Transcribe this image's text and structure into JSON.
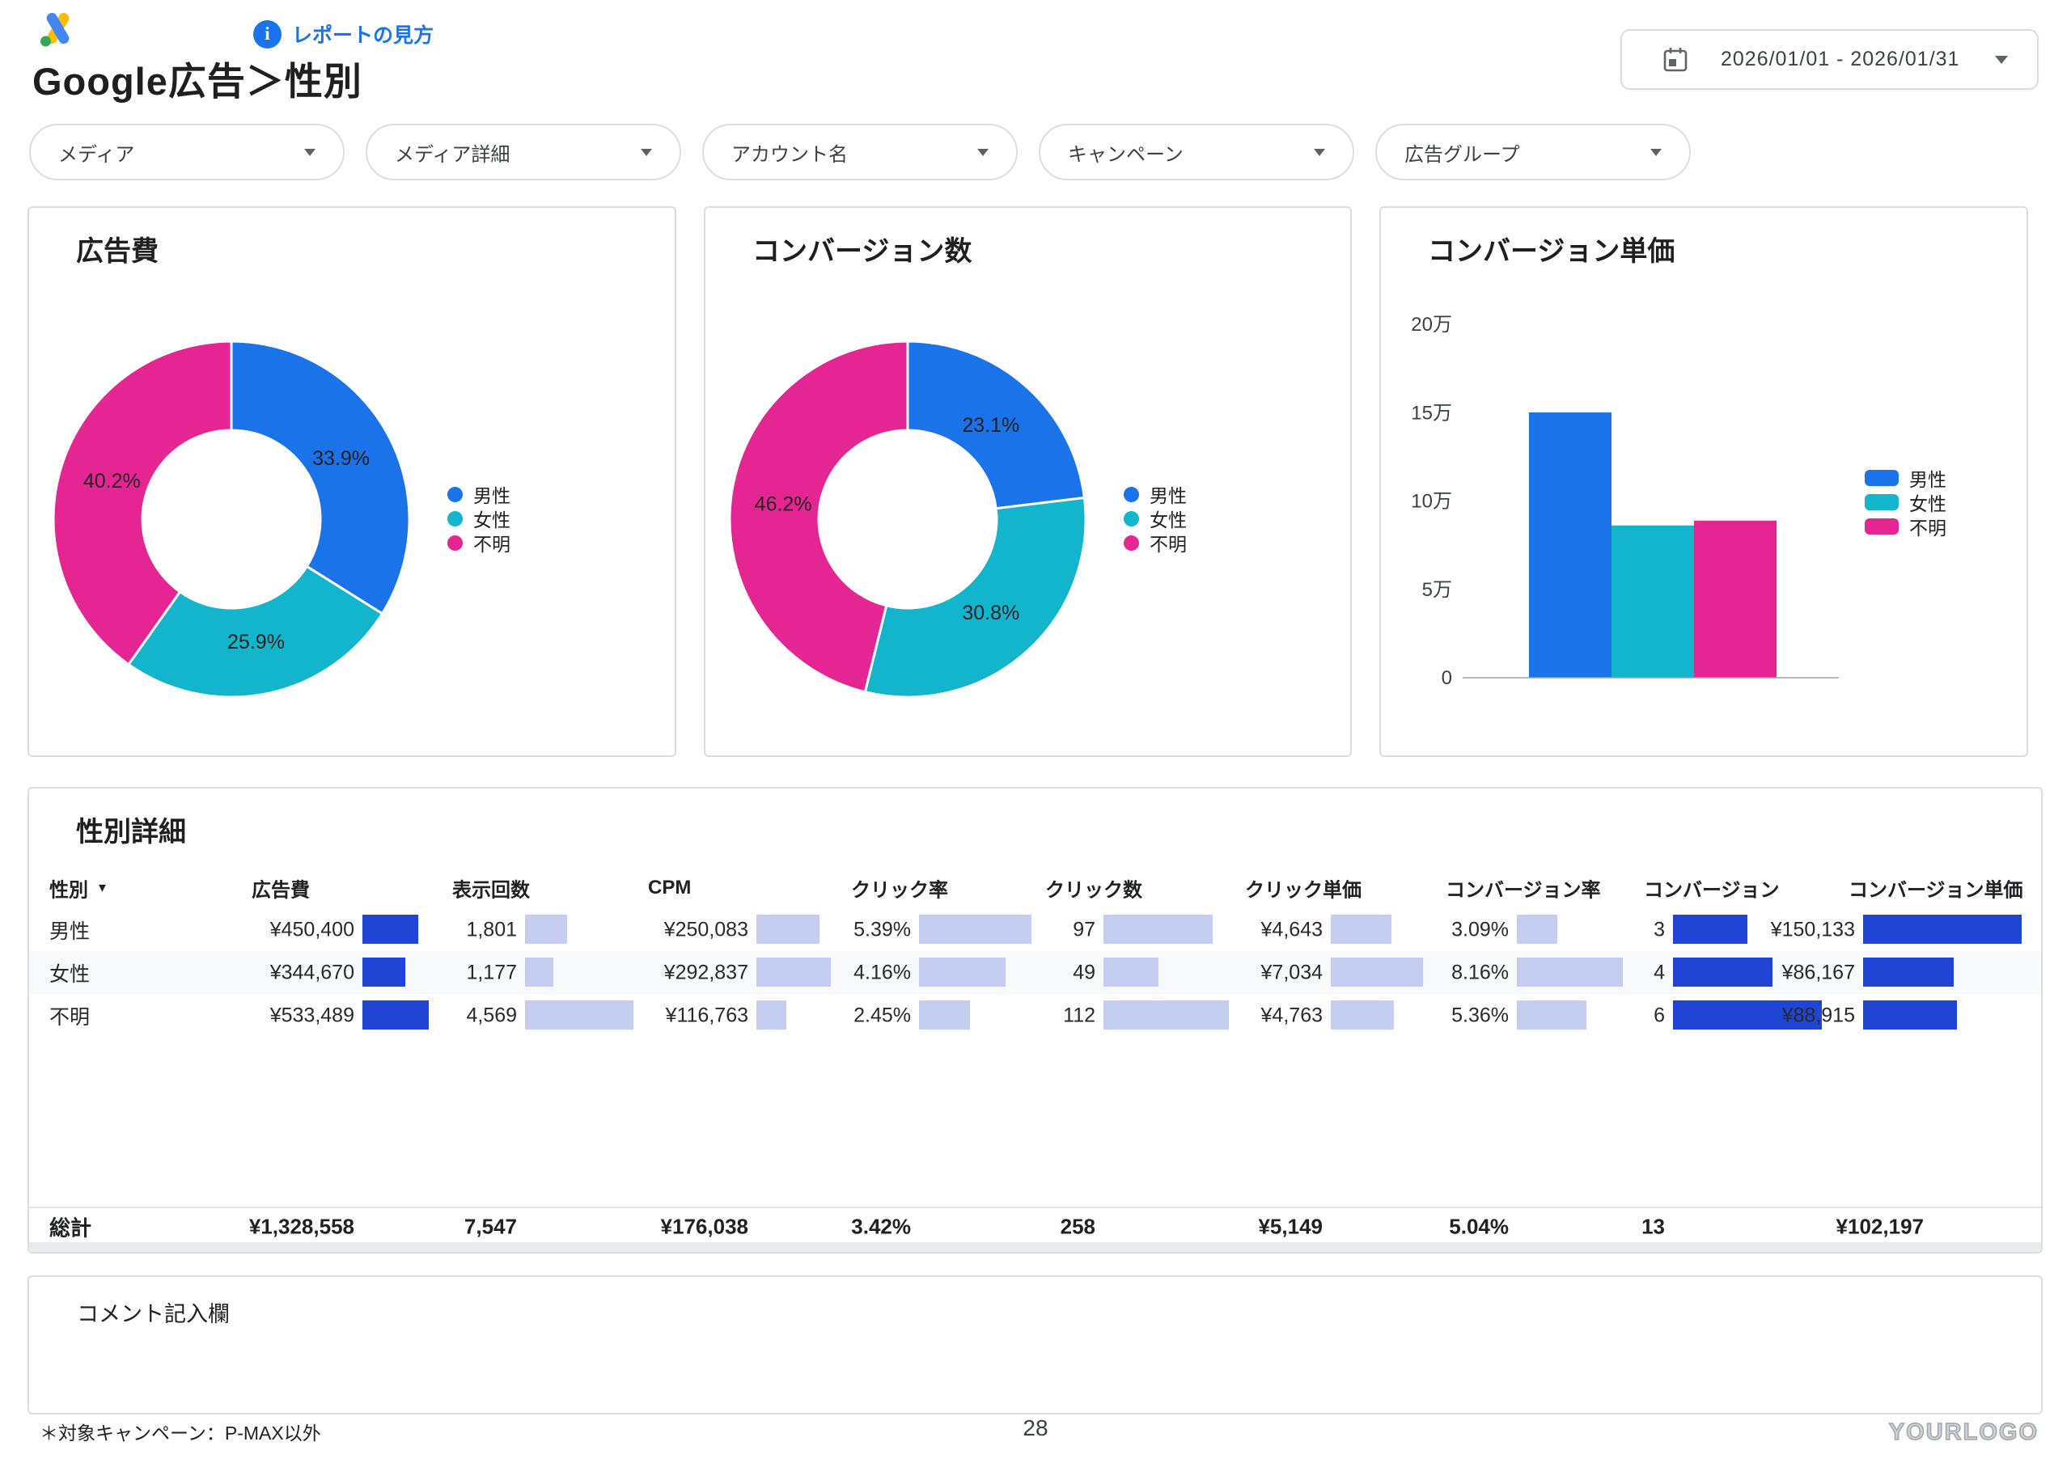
{
  "header": {
    "title": "Google広告＞性別",
    "help_link": "レポートの見方",
    "date_range": "2026/01/01 - 2026/01/31"
  },
  "filters": [
    {
      "label": "メディア"
    },
    {
      "label": "メディア詳細"
    },
    {
      "label": "アカウント名"
    },
    {
      "label": "キャンペーン"
    },
    {
      "label": "広告グループ"
    }
  ],
  "colors": {
    "male": "#1a73e8",
    "female": "#12b5cb",
    "unknown": "#e52592",
    "table_bar_dark": "#2044d4",
    "table_bar_light": "#c4cdf0",
    "link_blue": "#1a73e8"
  },
  "chart_data": [
    {
      "type": "donut",
      "title": "広告費",
      "categories": [
        "男性",
        "女性",
        "不明"
      ],
      "values": [
        33.9,
        25.9,
        40.2
      ],
      "labels": [
        "33.9%",
        "25.9%",
        "40.2%"
      ],
      "legend_position": "right",
      "legend_shape": "circle"
    },
    {
      "type": "donut",
      "title": "コンバージョン数",
      "categories": [
        "男性",
        "女性",
        "不明"
      ],
      "values": [
        23.1,
        30.8,
        46.2
      ],
      "labels": [
        "23.1%",
        "30.8%",
        "46.2%"
      ],
      "legend_position": "right",
      "legend_shape": "circle"
    },
    {
      "type": "bar",
      "title": "コンバージョン単価",
      "categories": [
        "男性",
        "女性",
        "不明"
      ],
      "values": [
        150133,
        86167,
        88915
      ],
      "ylim": [
        0,
        200000
      ],
      "y_ticks": [
        {
          "value": 0,
          "label": "0"
        },
        {
          "value": 50000,
          "label": "5万"
        },
        {
          "value": 100000,
          "label": "10万"
        },
        {
          "value": 150000,
          "label": "15万"
        },
        {
          "value": 200000,
          "label": "20万"
        }
      ],
      "grid": false,
      "legend_position": "right",
      "legend_shape": "rect"
    }
  ],
  "table": {
    "title": "性別詳細",
    "sort_glyph": "▼",
    "columns": [
      {
        "label": "性別"
      },
      {
        "label": "広告費",
        "bar": "dark"
      },
      {
        "label": "表示回数",
        "bar": "light"
      },
      {
        "label": "CPM",
        "bar": "light"
      },
      {
        "label": "クリック率",
        "bar": "light"
      },
      {
        "label": "クリック数",
        "bar": "light"
      },
      {
        "label": "クリック単価",
        "bar": "light"
      },
      {
        "label": "コンバージョン率",
        "bar": "light"
      },
      {
        "label": "コンバージョン",
        "bar": "dark"
      },
      {
        "label": "コンバージョン単価",
        "bar": "dark"
      }
    ],
    "rows": [
      {
        "label": "男性",
        "cells": [
          {
            "t": "¥450,400",
            "p": 84
          },
          {
            "t": "1,801",
            "p": 39
          },
          {
            "t": "¥250,083",
            "p": 85
          },
          {
            "t": "5.39%",
            "p": 100
          },
          {
            "t": "97",
            "p": 87
          },
          {
            "t": "¥4,643",
            "p": 66
          },
          {
            "t": "3.09%",
            "p": 38
          },
          {
            "t": "3",
            "p": 50
          },
          {
            "t": "¥150,133",
            "p": 100
          }
        ]
      },
      {
        "label": "女性",
        "cells": [
          {
            "t": "¥344,670",
            "p": 65
          },
          {
            "t": "1,177",
            "p": 26
          },
          {
            "t": "¥292,837",
            "p": 100
          },
          {
            "t": "4.16%",
            "p": 77
          },
          {
            "t": "49",
            "p": 44
          },
          {
            "t": "¥7,034",
            "p": 100
          },
          {
            "t": "8.16%",
            "p": 100
          },
          {
            "t": "4",
            "p": 67
          },
          {
            "t": "¥86,167",
            "p": 57
          }
        ]
      },
      {
        "label": "不明",
        "cells": [
          {
            "t": "¥533,489",
            "p": 100
          },
          {
            "t": "4,569",
            "p": 100
          },
          {
            "t": "¥116,763",
            "p": 40
          },
          {
            "t": "2.45%",
            "p": 45
          },
          {
            "t": "112",
            "p": 100
          },
          {
            "t": "¥4,763",
            "p": 68
          },
          {
            "t": "5.36%",
            "p": 66
          },
          {
            "t": "6",
            "p": 100
          },
          {
            "t": "¥88,915",
            "p": 59
          }
        ]
      }
    ],
    "total": {
      "label": "総計",
      "cells": [
        "¥1,328,558",
        "7,547",
        "¥176,038",
        "3.42%",
        "258",
        "¥5,149",
        "5.04%",
        "13",
        "¥102,197"
      ]
    }
  },
  "comment": {
    "title": "コメント記入欄"
  },
  "footer": {
    "note": "＊対象キャンペーン：P-MAX以外",
    "page": "28",
    "logo": "YOURLOGO"
  }
}
